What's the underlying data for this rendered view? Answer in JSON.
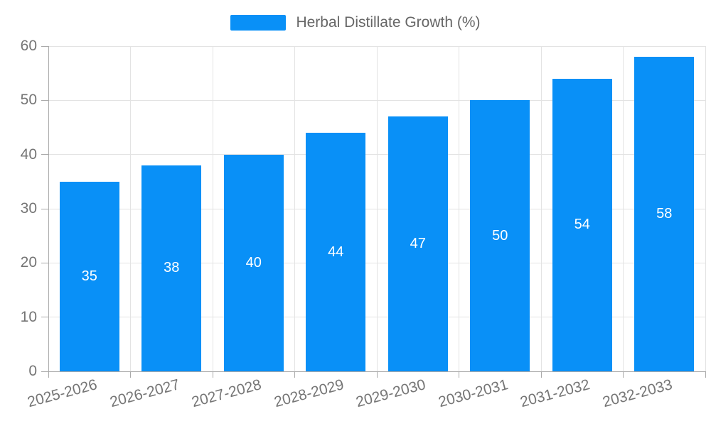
{
  "legend": {
    "label": "Herbal Distillate Growth (%)"
  },
  "colors": {
    "bar": "#0990f7",
    "bar_label": "#ffffff",
    "legend_text": "#666666",
    "tick_label": "#757575",
    "axis_line": "#aaaaaa",
    "gridline": "#e3e3e3",
    "background": "#ffffff"
  },
  "chart_data": {
    "type": "bar",
    "title": "Herbal Distillate Growth (%)",
    "categories": [
      "2025-2026",
      "2026-2027",
      "2027-2028",
      "2028-2029",
      "2029-2030",
      "2030-2031",
      "2031-2032",
      "2032-2033"
    ],
    "values": [
      35,
      38,
      40,
      44,
      47,
      50,
      54,
      58
    ],
    "xlabel": "",
    "ylabel": "",
    "ylim": [
      0,
      60
    ],
    "yticks": [
      0,
      10,
      20,
      30,
      40,
      50,
      60
    ],
    "grid": true,
    "legend_position": "top-center",
    "legend_entries": [
      "Herbal Distillate Growth (%)"
    ],
    "data_labels_position": "center-inside",
    "x_tick_label_rotation_deg": -15
  }
}
